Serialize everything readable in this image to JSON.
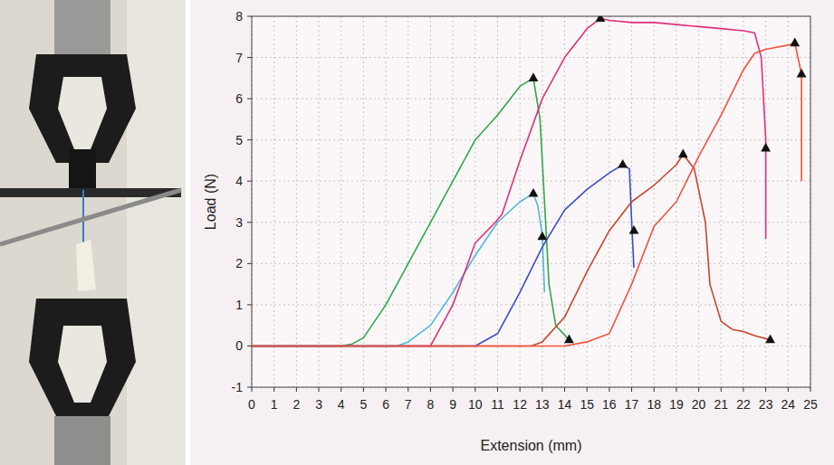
{
  "chart_data": {
    "type": "line",
    "x_label": "Extension (mm)",
    "y_label": "Load (N)",
    "xlim": [
      0,
      25
    ],
    "ylim": [
      -1,
      8
    ],
    "xticks": [
      0,
      1,
      2,
      3,
      4,
      5,
      6,
      7,
      8,
      9,
      10,
      11,
      12,
      13,
      14,
      15,
      16,
      17,
      18,
      19,
      20,
      21,
      22,
      23,
      24,
      25
    ],
    "yticks": [
      -1,
      0,
      1,
      2,
      3,
      4,
      5,
      6,
      7,
      8
    ],
    "grid": true,
    "series": [
      {
        "color": "#2fa84a",
        "x": [
          0,
          4,
          4.5,
          5,
          6,
          7,
          8,
          9,
          10,
          11,
          12,
          12.6,
          12.9,
          13.1,
          13.3,
          13.6,
          14.2
        ],
        "values": [
          0,
          0,
          0.05,
          0.2,
          1,
          2,
          3,
          4,
          5,
          5.6,
          6.3,
          6.5,
          5.5,
          3.5,
          1.5,
          0.5,
          0.15
        ]
      },
      {
        "color": "#4cb8dc",
        "x": [
          0,
          6.5,
          7,
          8,
          9,
          10,
          11,
          12,
          12.6,
          12.8,
          13.0,
          13.1
        ],
        "values": [
          0,
          0,
          0.1,
          0.5,
          1.3,
          2.2,
          3,
          3.5,
          3.7,
          3.4,
          2.7,
          1.3
        ]
      },
      {
        "color": "#e0307a",
        "x": [
          0,
          8,
          9,
          10,
          10.9,
          11.2,
          12,
          13,
          14,
          15,
          15.6,
          16,
          17,
          18,
          19,
          20,
          21,
          22,
          22.5,
          22.8,
          23.0,
          23.0
        ],
        "values": [
          0,
          0,
          1,
          2.5,
          3,
          3.2,
          4.5,
          6,
          7,
          7.7,
          7.95,
          7.9,
          7.85,
          7.85,
          7.8,
          7.75,
          7.7,
          7.65,
          7.6,
          7.0,
          5.0,
          2.6
        ]
      },
      {
        "color": "#3a4fc0",
        "x": [
          0,
          10,
          11,
          12,
          13,
          14,
          15,
          16,
          16.6,
          16.9,
          17.0,
          17.1
        ],
        "values": [
          0,
          0,
          0.3,
          1.3,
          2.4,
          3.3,
          3.8,
          4.2,
          4.4,
          4.3,
          3.0,
          1.9
        ]
      },
      {
        "color": "#c9452e",
        "x": [
          0,
          12.5,
          13,
          14,
          15,
          16,
          17,
          18,
          19,
          19.3,
          19.8,
          20.3,
          20.5,
          21,
          21.5,
          22,
          22.5,
          23.2
        ],
        "values": [
          0,
          0,
          0.1,
          0.7,
          1.8,
          2.8,
          3.5,
          3.9,
          4.4,
          4.65,
          4.3,
          3,
          1.5,
          0.6,
          0.4,
          0.35,
          0.25,
          0.15
        ]
      },
      {
        "color": "#f0533c",
        "x": [
          0,
          14,
          15,
          16,
          17,
          18,
          19,
          20,
          21,
          22,
          22.5,
          23,
          24,
          24.3,
          24.6,
          24.6
        ],
        "values": [
          0,
          0,
          0.1,
          0.3,
          1.5,
          2.9,
          3.5,
          4.6,
          5.6,
          6.7,
          7.1,
          7.2,
          7.3,
          7.35,
          6.6,
          4.0
        ]
      },
      {
        "type": "scatter",
        "marker": "triangle",
        "color": "#111111",
        "x": [
          12.6,
          15.6,
          24.3,
          24.6,
          12.6,
          13.0,
          14.2,
          16.6,
          17.1,
          19.3,
          23.2,
          23.0
        ],
        "values": [
          6.5,
          7.95,
          7.35,
          6.6,
          3.7,
          2.65,
          0.15,
          4.4,
          2.8,
          4.65,
          0.15,
          4.8
        ]
      }
    ]
  }
}
